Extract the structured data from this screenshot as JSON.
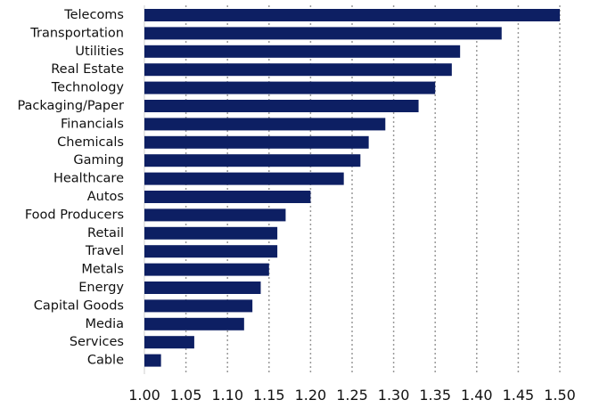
{
  "chart_data": {
    "type": "bar",
    "orientation": "horizontal",
    "categories": [
      "Telecoms",
      "Transportation",
      "Utilities",
      "Real Estate",
      "Technology",
      "Packaging/Paper",
      "Financials",
      "Chemicals",
      "Gaming",
      "Healthcare",
      "Autos",
      "Food Producers",
      "Retail",
      "Travel",
      "Metals",
      "Energy",
      "Capital Goods",
      "Media",
      "Services",
      "Cable"
    ],
    "values": [
      1.5,
      1.43,
      1.38,
      1.37,
      1.35,
      1.33,
      1.29,
      1.27,
      1.26,
      1.24,
      1.2,
      1.17,
      1.16,
      1.16,
      1.15,
      1.14,
      1.13,
      1.12,
      1.06,
      1.02
    ],
    "x_ticks": [
      "1.00",
      "1.05",
      "1.10",
      "1.15",
      "1.20",
      "1.25",
      "1.30",
      "1.35",
      "1.40",
      "1.45",
      "1.50"
    ],
    "xlim": [
      1.0,
      1.5
    ],
    "grid": "vertical dotted",
    "bar_color": "#0d1f63",
    "grid_color": "#9a9a9a"
  }
}
